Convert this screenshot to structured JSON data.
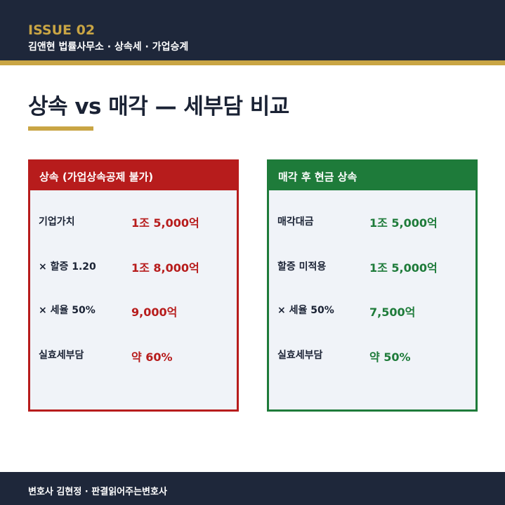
{
  "header": {
    "issue": "ISSUE 02",
    "subtitle": "김앤현 법률사무소 · 상속세 · 가업승계"
  },
  "title": "상속 vs 매각 — 세부담 비교",
  "left": {
    "heading": "상속 (가업상속공제 불가)",
    "rows": [
      {
        "label": "기업가치",
        "value": "1조 5,000억"
      },
      {
        "label": "× 할증 1.20",
        "value": "1조 8,000억"
      },
      {
        "label": "× 세율 50%",
        "value": "9,000억"
      },
      {
        "label": "실효세부담",
        "value": "약 60%"
      }
    ]
  },
  "right": {
    "heading": "매각 후 현금 상속",
    "rows": [
      {
        "label": "매각대금",
        "value": "1조 5,000억"
      },
      {
        "label": "할증 미적용",
        "value": "1조 5,000억"
      },
      {
        "label": "× 세율 50%",
        "value": "7,500억"
      },
      {
        "label": "실효세부담",
        "value": "약 50%"
      }
    ]
  },
  "footer": "변호사 김현정 · 판결읽어주는변호사",
  "colors": {
    "navy": "#1e273a",
    "gold": "#c9a544",
    "red": "#b71c1c",
    "green": "#1e7b3a"
  }
}
